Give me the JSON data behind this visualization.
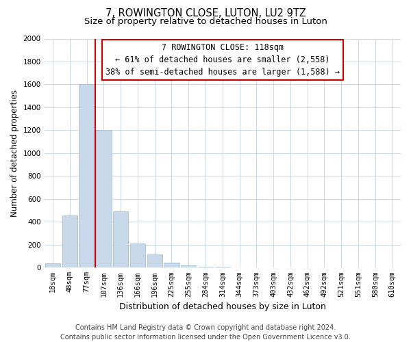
{
  "title": "7, ROWINGTON CLOSE, LUTON, LU2 9TZ",
  "subtitle": "Size of property relative to detached houses in Luton",
  "xlabel": "Distribution of detached houses by size in Luton",
  "ylabel": "Number of detached properties",
  "bar_labels": [
    "18sqm",
    "48sqm",
    "77sqm",
    "107sqm",
    "136sqm",
    "166sqm",
    "196sqm",
    "225sqm",
    "255sqm",
    "284sqm",
    "314sqm",
    "344sqm",
    "373sqm",
    "403sqm",
    "432sqm",
    "462sqm",
    "492sqm",
    "521sqm",
    "551sqm",
    "580sqm",
    "610sqm"
  ],
  "bar_values": [
    35,
    455,
    1600,
    1200,
    490,
    210,
    115,
    45,
    20,
    10,
    5,
    0,
    0,
    0,
    0,
    0,
    0,
    0,
    0,
    0,
    0
  ],
  "bar_color": "#c8d8eb",
  "bar_edge_color": "#a8c0d8",
  "vline_x_index": 2.5,
  "vline_color": "#cc0000",
  "ylim": [
    0,
    2000
  ],
  "yticks": [
    0,
    200,
    400,
    600,
    800,
    1000,
    1200,
    1400,
    1600,
    1800,
    2000
  ],
  "annotation_line1": "7 ROWINGTON CLOSE: 118sqm",
  "annotation_line2": "← 61% of detached houses are smaller (2,558)",
  "annotation_line3": "38% of semi-detached houses are larger (1,588) →",
  "annotation_box_color": "#ffffff",
  "annotation_box_edge": "#cc0000",
  "footer_line1": "Contains HM Land Registry data © Crown copyright and database right 2024.",
  "footer_line2": "Contains public sector information licensed under the Open Government Licence v3.0.",
  "bg_color": "#ffffff",
  "grid_color": "#ccd8e4",
  "title_fontsize": 10.5,
  "subtitle_fontsize": 9.5,
  "xlabel_fontsize": 9,
  "ylabel_fontsize": 8.5,
  "tick_fontsize": 7.5,
  "annot_fontsize": 8.5,
  "footer_fontsize": 7
}
